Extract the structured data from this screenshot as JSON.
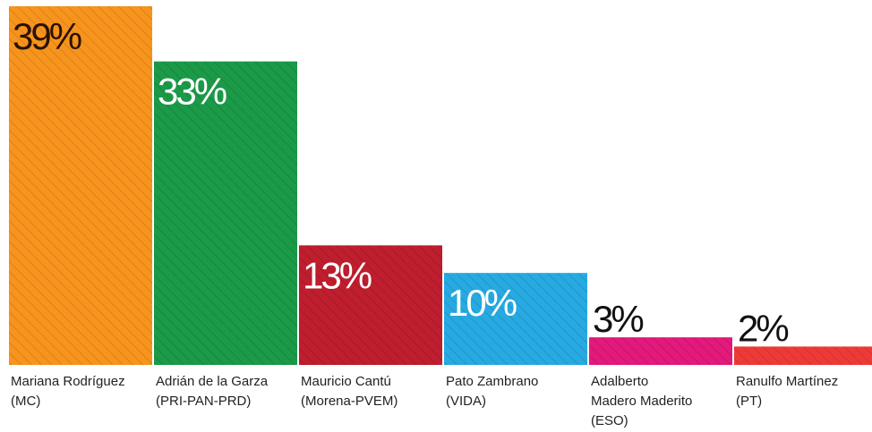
{
  "chart_data": {
    "type": "bar",
    "categories": [
      [
        "Mariana Rodríguez",
        "(MC)"
      ],
      [
        "Adrián de la Garza",
        "(PRI-PAN-PRD)"
      ],
      [
        "Mauricio Cantú",
        "(Morena-PVEM)"
      ],
      [
        "Pato Zambrano",
        "(VIDA)"
      ],
      [
        "Adalberto",
        "Madero Maderito",
        "(ESO)"
      ],
      [
        "Ranulfo Martínez",
        "(PT)"
      ]
    ],
    "values": [
      39,
      33,
      13,
      10,
      3,
      2
    ],
    "value_labels": [
      "39%",
      "33%",
      "13%",
      "10%",
      "3%",
      "2%"
    ],
    "colors": [
      "#f7941d",
      "#1b9a48",
      "#be1e2d",
      "#27aae1",
      "#e3197b",
      "#ee3a37"
    ]
  }
}
